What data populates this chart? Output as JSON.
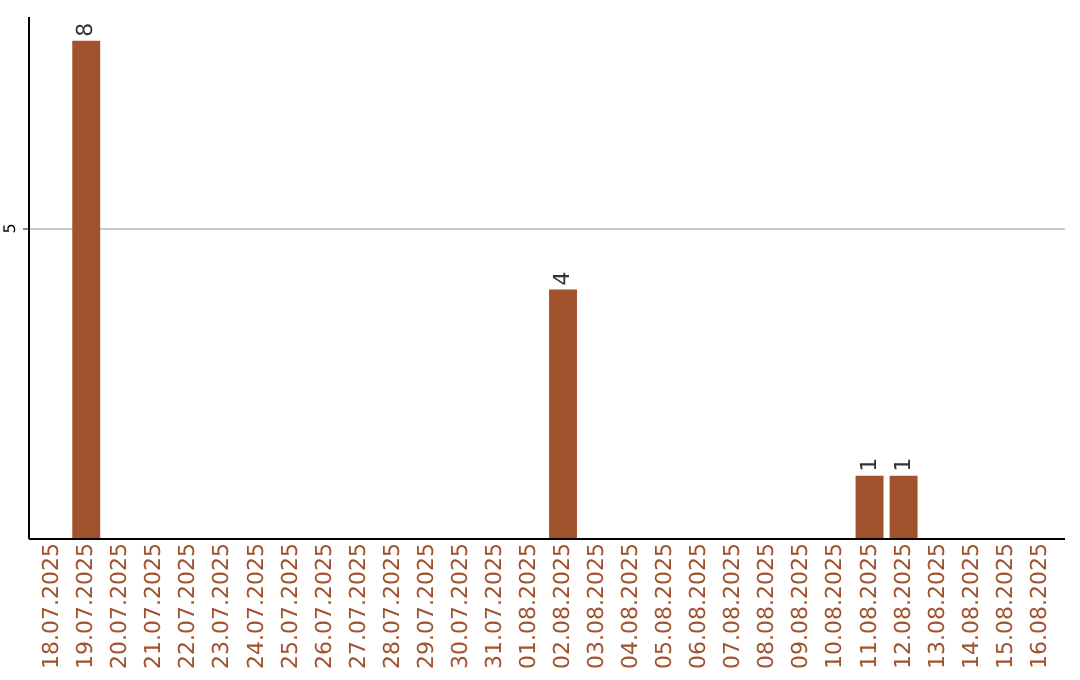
{
  "chart_data": {
    "type": "bar",
    "categories": [
      "18.07.2025",
      "19.07.2025",
      "20.07.2025",
      "21.07.2025",
      "22.07.2025",
      "23.07.2025",
      "24.07.2025",
      "25.07.2025",
      "26.07.2025",
      "27.07.2025",
      "28.07.2025",
      "29.07.2025",
      "30.07.2025",
      "31.07.2025",
      "01.08.2025",
      "02.08.2025",
      "03.08.2025",
      "04.08.2025",
      "05.08.2025",
      "06.08.2025",
      "07.08.2025",
      "08.08.2025",
      "09.08.2025",
      "10.08.2025",
      "11.08.2025",
      "12.08.2025",
      "13.08.2025",
      "14.08.2025",
      "15.08.2025",
      "16.08.2025"
    ],
    "values": [
      0,
      8,
      0,
      0,
      0,
      0,
      0,
      0,
      0,
      0,
      0,
      0,
      0,
      0,
      0,
      4,
      0,
      0,
      0,
      0,
      0,
      0,
      0,
      0,
      1,
      1,
      0,
      0,
      0,
      0
    ],
    "value_labels": [
      null,
      "8",
      null,
      null,
      null,
      null,
      null,
      null,
      null,
      null,
      null,
      null,
      null,
      null,
      null,
      "4",
      null,
      null,
      null,
      null,
      null,
      null,
      null,
      null,
      "1",
      "1",
      null,
      null,
      null,
      null
    ],
    "color": "#a0522d",
    "ylim": [
      0,
      8.4
    ],
    "yticks": [
      5
    ],
    "grid": "y"
  }
}
